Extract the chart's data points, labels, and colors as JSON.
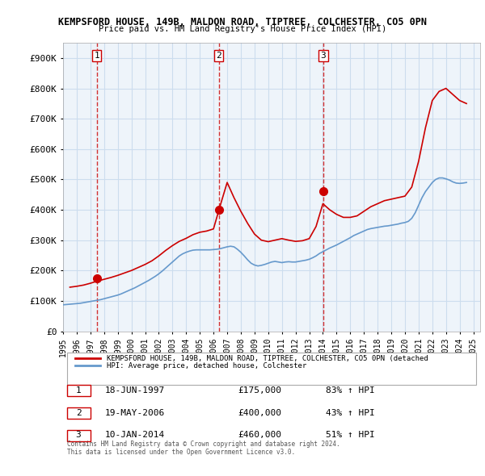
{
  "title1": "KEMPSFORD HOUSE, 149B, MALDON ROAD, TIPTREE, COLCHESTER, CO5 0PN",
  "title2": "Price paid vs. HM Land Registry's House Price Index (HPI)",
  "ylabel": "",
  "xlim_start": 1995.0,
  "xlim_end": 2025.5,
  "ylim": [
    0,
    950000
  ],
  "yticks": [
    0,
    100000,
    200000,
    300000,
    400000,
    500000,
    600000,
    700000,
    800000,
    900000
  ],
  "ytick_labels": [
    "£0",
    "£100K",
    "£200K",
    "£300K",
    "£400K",
    "£500K",
    "£600K",
    "£700K",
    "£800K",
    "£900K"
  ],
  "xticks": [
    1995,
    1996,
    1997,
    1998,
    1999,
    2000,
    2001,
    2002,
    2003,
    2004,
    2005,
    2006,
    2007,
    2008,
    2009,
    2010,
    2011,
    2012,
    2013,
    2014,
    2015,
    2016,
    2017,
    2018,
    2019,
    2020,
    2021,
    2022,
    2023,
    2024,
    2025
  ],
  "sale_dates": [
    1997.46,
    2006.38,
    2014.03
  ],
  "sale_prices": [
    175000,
    400000,
    460000
  ],
  "sale_labels": [
    "1",
    "2",
    "3"
  ],
  "hpi_line_color": "#6699cc",
  "price_line_color": "#cc0000",
  "marker_color": "#cc0000",
  "vline_color": "#cc0000",
  "grid_color": "#ccddee",
  "bg_color": "#eef4fa",
  "legend_line1": "KEMPSFORD HOUSE, 149B, MALDON ROAD, TIPTREE, COLCHESTER, CO5 0PN (detached",
  "legend_line2": "HPI: Average price, detached house, Colchester",
  "table_rows": [
    [
      "1",
      "18-JUN-1997",
      "£175,000",
      "83% ↑ HPI"
    ],
    [
      "2",
      "19-MAY-2006",
      "£400,000",
      "43% ↑ HPI"
    ],
    [
      "3",
      "10-JAN-2014",
      "£460,000",
      "51% ↑ HPI"
    ]
  ],
  "footer": "Contains HM Land Registry data © Crown copyright and database right 2024.\nThis data is licensed under the Open Government Licence v3.0.",
  "hpi_data_x": [
    1995.0,
    1995.25,
    1995.5,
    1995.75,
    1996.0,
    1996.25,
    1996.5,
    1996.75,
    1997.0,
    1997.25,
    1997.5,
    1997.75,
    1998.0,
    1998.25,
    1998.5,
    1998.75,
    1999.0,
    1999.25,
    1999.5,
    1999.75,
    2000.0,
    2000.25,
    2000.5,
    2000.75,
    2001.0,
    2001.25,
    2001.5,
    2001.75,
    2002.0,
    2002.25,
    2002.5,
    2002.75,
    2003.0,
    2003.25,
    2003.5,
    2003.75,
    2004.0,
    2004.25,
    2004.5,
    2004.75,
    2005.0,
    2005.25,
    2005.5,
    2005.75,
    2006.0,
    2006.25,
    2006.5,
    2006.75,
    2007.0,
    2007.25,
    2007.5,
    2007.75,
    2008.0,
    2008.25,
    2008.5,
    2008.75,
    2009.0,
    2009.25,
    2009.5,
    2009.75,
    2010.0,
    2010.25,
    2010.5,
    2010.75,
    2011.0,
    2011.25,
    2011.5,
    2011.75,
    2012.0,
    2012.25,
    2012.5,
    2012.75,
    2013.0,
    2013.25,
    2013.5,
    2013.75,
    2014.0,
    2014.25,
    2014.5,
    2014.75,
    2015.0,
    2015.25,
    2015.5,
    2015.75,
    2016.0,
    2016.25,
    2016.5,
    2016.75,
    2017.0,
    2017.25,
    2017.5,
    2017.75,
    2018.0,
    2018.25,
    2018.5,
    2018.75,
    2019.0,
    2019.25,
    2019.5,
    2019.75,
    2020.0,
    2020.25,
    2020.5,
    2020.75,
    2021.0,
    2021.25,
    2021.5,
    2021.75,
    2022.0,
    2022.25,
    2022.5,
    2022.75,
    2023.0,
    2023.25,
    2023.5,
    2023.75,
    2024.0,
    2024.25,
    2024.5
  ],
  "hpi_data_y": [
    87000,
    88000,
    89000,
    90000,
    91000,
    92000,
    94000,
    96000,
    98000,
    100000,
    102000,
    104000,
    107000,
    110000,
    113000,
    116000,
    119000,
    123000,
    128000,
    133000,
    138000,
    143000,
    149000,
    155000,
    161000,
    167000,
    174000,
    181000,
    189000,
    198000,
    208000,
    218000,
    228000,
    238000,
    248000,
    255000,
    260000,
    264000,
    267000,
    268000,
    268000,
    268000,
    268000,
    268000,
    269000,
    270000,
    272000,
    275000,
    278000,
    280000,
    278000,
    270000,
    260000,
    248000,
    235000,
    224000,
    218000,
    215000,
    217000,
    220000,
    224000,
    228000,
    230000,
    228000,
    226000,
    228000,
    229000,
    228000,
    228000,
    230000,
    232000,
    234000,
    237000,
    242000,
    248000,
    256000,
    262000,
    268000,
    274000,
    279000,
    284000,
    290000,
    296000,
    302000,
    308000,
    315000,
    320000,
    325000,
    330000,
    335000,
    338000,
    340000,
    342000,
    344000,
    346000,
    347000,
    349000,
    351000,
    353000,
    356000,
    358000,
    362000,
    372000,
    390000,
    415000,
    440000,
    460000,
    475000,
    490000,
    500000,
    505000,
    505000,
    502000,
    498000,
    492000,
    488000,
    487000,
    488000,
    490000
  ],
  "price_data_x": [
    1995.5,
    1996.0,
    1996.5,
    1997.0,
    1997.5,
    1998.0,
    1998.5,
    1999.0,
    1999.5,
    2000.0,
    2000.5,
    2001.0,
    2001.5,
    2002.0,
    2002.5,
    2003.0,
    2003.5,
    2004.0,
    2004.5,
    2005.0,
    2005.5,
    2006.0,
    2006.5,
    2007.0,
    2007.5,
    2008.0,
    2008.5,
    2009.0,
    2009.5,
    2010.0,
    2010.5,
    2011.0,
    2011.5,
    2012.0,
    2012.5,
    2013.0,
    2013.5,
    2014.0,
    2014.5,
    2015.0,
    2015.5,
    2016.0,
    2016.5,
    2017.0,
    2017.5,
    2018.0,
    2018.5,
    2019.0,
    2019.5,
    2020.0,
    2020.5,
    2021.0,
    2021.5,
    2022.0,
    2022.5,
    2023.0,
    2023.5,
    2024.0,
    2024.5
  ],
  "price_data_y": [
    145000,
    148000,
    152000,
    158000,
    165000,
    171000,
    177000,
    184000,
    192000,
    200000,
    210000,
    220000,
    232000,
    248000,
    266000,
    282000,
    296000,
    306000,
    318000,
    326000,
    330000,
    337000,
    415000,
    490000,
    440000,
    395000,
    355000,
    320000,
    300000,
    295000,
    300000,
    305000,
    300000,
    296000,
    298000,
    305000,
    345000,
    420000,
    400000,
    385000,
    375000,
    375000,
    380000,
    395000,
    410000,
    420000,
    430000,
    435000,
    440000,
    445000,
    475000,
    560000,
    670000,
    760000,
    790000,
    800000,
    780000,
    760000,
    750000
  ]
}
